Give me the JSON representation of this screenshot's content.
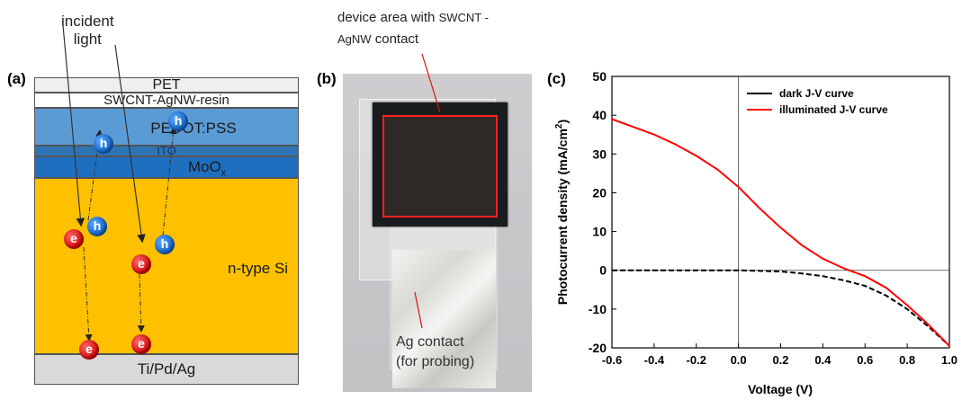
{
  "panel_a": {
    "label": "(a)",
    "incident_light_line1": "incident",
    "incident_light_line2": "light",
    "layers": {
      "pet": "PET",
      "swcnt": "SWCNT-AgNW-resin",
      "pedot": "PEDOT:PSS",
      "ito": "ITO",
      "moox_base": "MoO",
      "moox_sub": "x",
      "si": "n-type Si",
      "contact": "Ti/Pd/Ag"
    },
    "electron_symbol": "e",
    "hole_symbol": "h",
    "colors": {
      "pet": "#efefef",
      "swcnt": "#ffffff",
      "pedot": "#5b9bd5",
      "ito": "#2e74b5",
      "moox": "#1f6fc0",
      "si": "#ffc000",
      "contact": "#d9d9d9",
      "electron": "#e00000",
      "hole": "#1f6fd0"
    }
  },
  "panel_b": {
    "label": "(b)",
    "top_caption_line1_a": "device area with ",
    "top_caption_line1_b": "SWCNT -",
    "top_caption_line2_a": "AgNW",
    "top_caption_line2_b": " contact",
    "bottom_caption_line1": "Ag  contact",
    "bottom_caption_line2": "(for probing)"
  },
  "panel_c": {
    "label": "(c)",
    "chart_data": {
      "type": "line",
      "xlabel": "Voltage (V)",
      "ylabel_main": "Photocurrent density (mA/cm",
      "ylabel_sup": "2",
      "ylabel_end": ")",
      "xlim": [
        -0.6,
        1.0
      ],
      "ylim": [
        -20,
        50
      ],
      "x_ticks": [
        "-0.6",
        "-0.4",
        "-0.2",
        "0.0",
        "0.2",
        "0.4",
        "0.6",
        "0.8",
        "1.0"
      ],
      "y_ticks": [
        "-20",
        "-10",
        "0",
        "10",
        "20",
        "30",
        "40",
        "50"
      ],
      "legend_position": "top-right",
      "series": [
        {
          "name": "dark J-V curve",
          "color": "#000000",
          "style": "dashed",
          "x": [
            -0.6,
            -0.4,
            -0.2,
            0.0,
            0.2,
            0.3,
            0.4,
            0.5,
            0.6,
            0.7,
            0.8,
            0.9,
            1.0
          ],
          "y": [
            0.0,
            0.0,
            0.0,
            0.0,
            -0.3,
            -0.8,
            -1.5,
            -2.6,
            -4.0,
            -6.5,
            -10.0,
            -14.5,
            -19.5
          ]
        },
        {
          "name": "illuminated J-V curve",
          "color": "#ff0000",
          "style": "solid",
          "x": [
            -0.6,
            -0.5,
            -0.4,
            -0.3,
            -0.2,
            -0.1,
            0.0,
            0.1,
            0.2,
            0.3,
            0.4,
            0.5,
            0.6,
            0.7,
            0.8,
            0.9,
            1.0
          ],
          "y": [
            39,
            37,
            35,
            32.5,
            29.5,
            26,
            21.5,
            16,
            11,
            6.5,
            3,
            0.5,
            -1.5,
            -4.5,
            -9,
            -14,
            -19.5
          ]
        }
      ]
    }
  }
}
